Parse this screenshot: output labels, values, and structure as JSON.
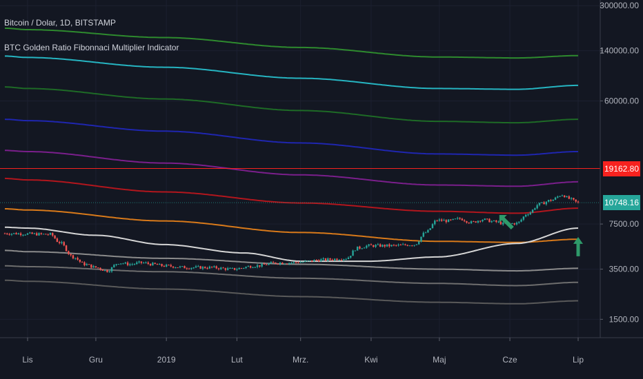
{
  "header": {
    "symbol_title": "Bitcoin / Dolar, 1D, BITSTAMP",
    "indicator_title": "BTC Golden Ratio Fibonnaci Multiplier Indicator"
  },
  "price_tags": {
    "upper": {
      "value": "19162.80",
      "color": "#f7221f"
    },
    "current": {
      "value": "10748.16",
      "color": "#26a69a"
    }
  },
  "chart_data": {
    "type": "line",
    "yscale": "log",
    "ylim": [
      1100,
      330000
    ],
    "y_ticks": [
      "300000.00",
      "140000.00",
      "60000.00",
      "7500.00",
      "3500.00",
      "1500.00"
    ],
    "y_tick_values": [
      300000,
      140000,
      60000,
      7500,
      3500,
      1500
    ],
    "x_ticks": [
      "Lis",
      "Gru",
      "2019",
      "Lut",
      "Mrz.",
      "Kwi",
      "Maj",
      "Cze",
      "Lip"
    ],
    "x_tick_days": [
      0,
      30,
      61,
      92,
      120,
      151,
      181,
      212,
      242
    ],
    "x_range_days": [
      -10,
      242
    ],
    "series": [
      {
        "color": "#2e8b2e",
        "x": [
          -10,
          0,
          60,
          120,
          180,
          215,
          242
        ],
        "y": [
          205000,
          200000,
          175000,
          148000,
          126000,
          124000,
          129000
        ]
      },
      {
        "color": "#26b5c2",
        "x": [
          -10,
          0,
          60,
          120,
          180,
          215,
          242
        ],
        "y": [
          128000,
          125000,
          106000,
          88000,
          74000,
          73000,
          78000
        ]
      },
      {
        "color": "#1e6b26",
        "x": [
          -10,
          0,
          60,
          120,
          180,
          215,
          242
        ],
        "y": [
          76000,
          74000,
          62000,
          51000,
          42500,
          41500,
          44000
        ]
      },
      {
        "color": "#1f26b0",
        "x": [
          -10,
          0,
          60,
          120,
          180,
          215,
          242
        ],
        "y": [
          44000,
          43000,
          36000,
          29500,
          24500,
          24000,
          25500
        ]
      },
      {
        "color": "#7b1f8c",
        "x": [
          -10,
          0,
          60,
          120,
          180,
          215,
          242
        ],
        "y": [
          26000,
          25500,
          21000,
          17200,
          14500,
          14200,
          15300
        ]
      },
      {
        "color": "#b3161d",
        "x": [
          -10,
          0,
          60,
          120,
          180,
          215,
          242
        ],
        "y": [
          16200,
          15800,
          12900,
          10700,
          9300,
          9000,
          9800
        ]
      },
      {
        "color": "#d97a1a",
        "x": [
          -10,
          0,
          60,
          120,
          180,
          215,
          242
        ],
        "y": [
          9700,
          9500,
          7900,
          6500,
          5600,
          5500,
          5800
        ]
      },
      {
        "color": "#d6d6d6",
        "x": [
          -10,
          0,
          30,
          60,
          95,
          120,
          150,
          180,
          215,
          242
        ],
        "y": [
          7100,
          7000,
          6200,
          5300,
          4600,
          4000,
          4000,
          4300,
          5400,
          7000
        ]
      },
      {
        "color": "#8c8c8c",
        "x": [
          -10,
          0,
          60,
          120,
          180,
          215,
          242
        ],
        "y": [
          4800,
          4700,
          4200,
          3800,
          3500,
          3400,
          3550
        ]
      },
      {
        "color": "#6e6e6e",
        "x": [
          -10,
          0,
          60,
          120,
          180,
          215,
          242
        ],
        "y": [
          3700,
          3650,
          3350,
          3000,
          2750,
          2650,
          2800
        ]
      },
      {
        "color": "#5a5a5a",
        "x": [
          -10,
          0,
          60,
          120,
          180,
          215,
          242
        ],
        "y": [
          2900,
          2850,
          2500,
          2200,
          2000,
          1950,
          2050
        ]
      }
    ],
    "horizontal_lines": [
      {
        "value": 19162.8,
        "color": "#f7221f"
      },
      {
        "value": 10748.16,
        "color": "#26a69a",
        "style": "dotted"
      }
    ],
    "price_path": {
      "x": [
        -10,
        10,
        14,
        20,
        25,
        30,
        35,
        40,
        45,
        50,
        55,
        60,
        70,
        80,
        90,
        100,
        110,
        115,
        120,
        130,
        140,
        145,
        150,
        160,
        170,
        175,
        180,
        185,
        190,
        195,
        200,
        205,
        210,
        215,
        220,
        225,
        230,
        235,
        238,
        242
      ],
      "y": [
        6400,
        6300,
        5500,
        4300,
        3800,
        3600,
        3400,
        3900,
        3800,
        3900,
        3800,
        3700,
        3600,
        3600,
        3500,
        3700,
        3900,
        3900,
        3950,
        4100,
        4200,
        5000,
        5200,
        5200,
        5300,
        6500,
        8000,
        7900,
        8200,
        7700,
        8100,
        7800,
        7500,
        7600,
        9000,
        10500,
        11200,
        12300,
        11500,
        10748
      ]
    },
    "arrows": [
      {
        "x": 211,
        "y": 7600,
        "direction": "up-left",
        "color": "#2e9a6a"
      },
      {
        "x": 242,
        "y": 5000,
        "direction": "up",
        "color": "#2e9a6a"
      }
    ]
  }
}
